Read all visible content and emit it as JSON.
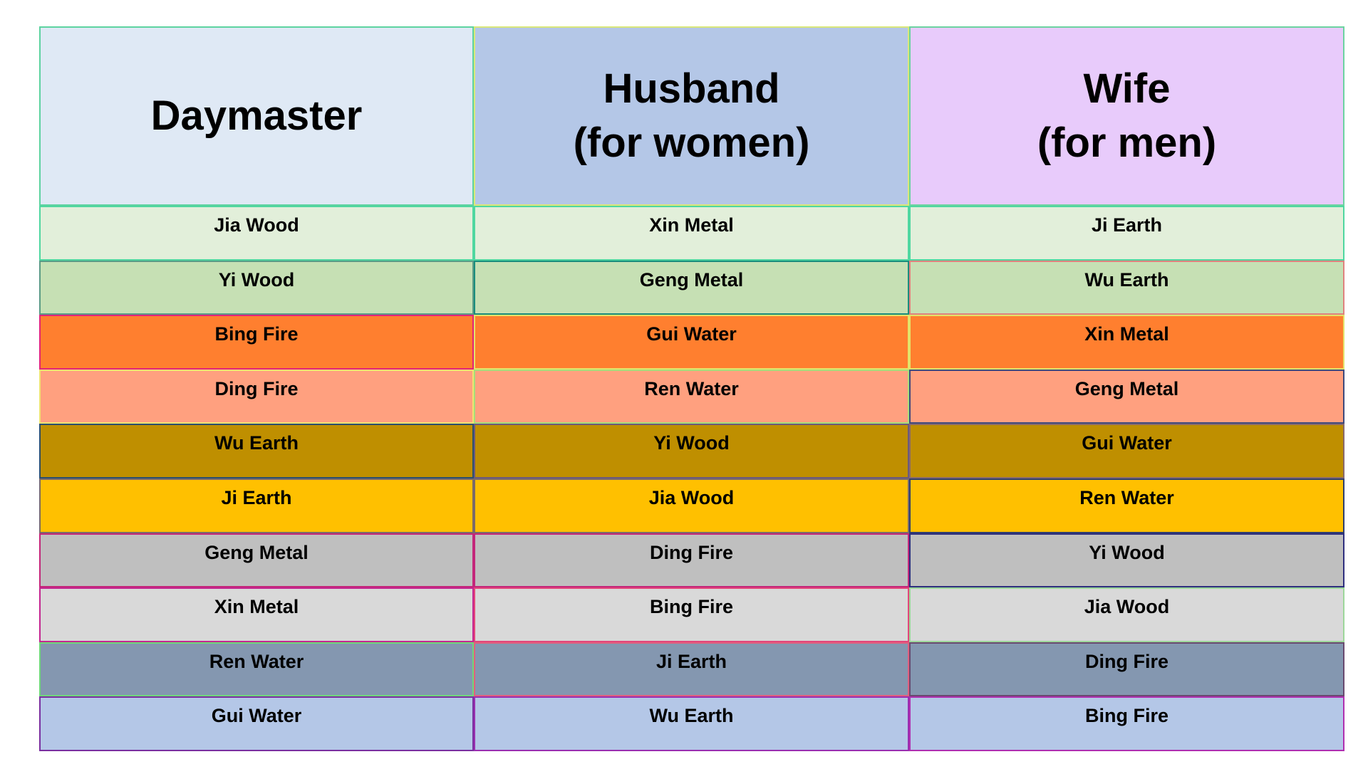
{
  "header": {
    "columns": [
      {
        "lines": [
          "Daymaster"
        ],
        "bg": "#dfe9f5",
        "border": "#5dd3a0"
      },
      {
        "lines": [
          "Husband",
          "(for women)"
        ],
        "bg": "#b4c7e7",
        "border": "#d9e77a"
      },
      {
        "lines": [
          "Wife",
          "(for men)"
        ],
        "bg": "#e8cbfb",
        "border": "#6cd3a0"
      }
    ]
  },
  "rows": [
    {
      "cells": [
        "Jia Wood",
        "Xin Metal",
        "Ji Earth"
      ],
      "bg": "#e2efda",
      "borders": [
        "#4fd7a0",
        "#4fd7a0",
        "#4fd7a0"
      ]
    },
    {
      "cells": [
        "Yi Wood",
        "Geng Metal",
        "Wu Earth"
      ],
      "bg": "#c6e0b4",
      "borders": [
        "#5b9b86",
        "#1a8d7d",
        "#e0827f"
      ]
    },
    {
      "cells": [
        "Bing Fire",
        "Gui Water",
        "Xin Metal"
      ],
      "bg": "#ff7f2f",
      "borders": [
        "#e3237a",
        "#e3e36a",
        "#e3e36a"
      ]
    },
    {
      "cells": [
        "Ding Fire",
        "Ren Water",
        "Geng Metal"
      ],
      "bg": "#ffa07f",
      "borders": [
        "#f0e372",
        "#a7dd7a",
        "#3e4a7d"
      ]
    },
    {
      "cells": [
        "Wu Earth",
        "Yi Wood",
        "Gui Water"
      ],
      "bg": "#bf8f00",
      "borders": [
        "#2b4f6f",
        "#6b5a7d",
        "#8a6a6a"
      ]
    },
    {
      "cells": [
        "Ji Earth",
        "Jia Wood",
        "Ren Water"
      ],
      "bg": "#ffc000",
      "borders": [
        "#7a6a6a",
        "#7a6a6a",
        "#2f3f6f"
      ]
    },
    {
      "cells": [
        "Geng Metal",
        "Ding Fire",
        "Yi Wood"
      ],
      "bg": "#bfbfbf",
      "borders": [
        "#c4267a",
        "#c4267a",
        "#2f2f7f"
      ]
    },
    {
      "cells": [
        "Xin Metal",
        "Bing Fire",
        "Jia Wood"
      ],
      "bg": "#d9d9d9",
      "borders": [
        "#c42690",
        "#e3467a",
        "#9dd79a"
      ]
    },
    {
      "cells": [
        "Ren Water",
        "Ji Earth",
        "Ding Fire"
      ],
      "bg": "#8497b0",
      "borders": [
        "#6fd77a",
        "#e0607f",
        "#6a4a6f"
      ]
    },
    {
      "cells": [
        "Gui Water",
        "Wu Earth",
        "Bing Fire"
      ],
      "bg": "#b4c7e7",
      "borders": [
        "#7a2fa0",
        "#9a2fb0",
        "#b02fb0"
      ]
    }
  ]
}
